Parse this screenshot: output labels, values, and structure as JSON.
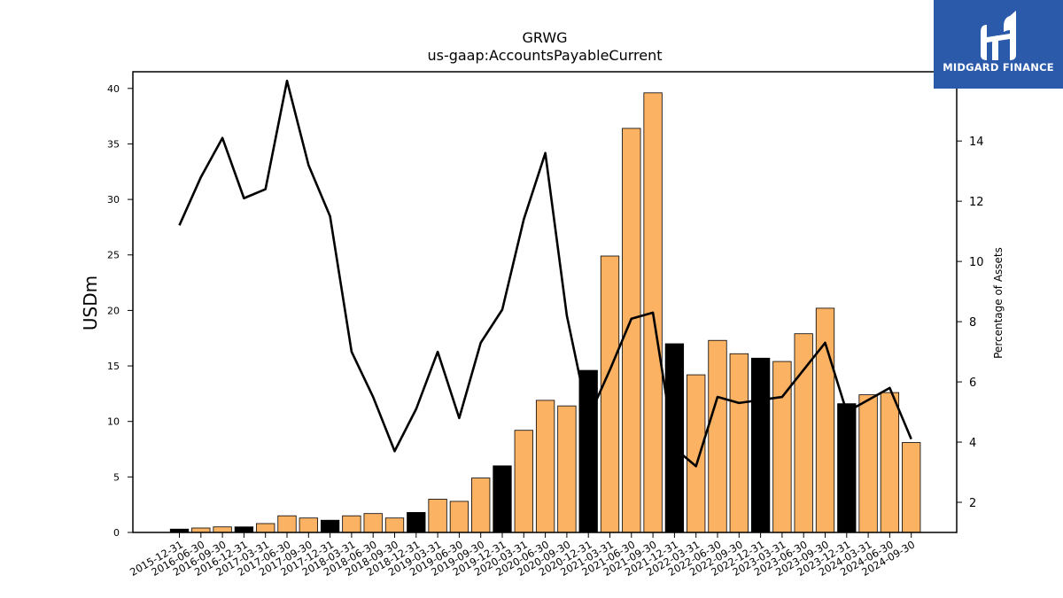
{
  "logo": {
    "text": "MIDGARD FINANCE",
    "color": "#2b5aab"
  },
  "chart_data": {
    "type": "bar",
    "title": "GRWG",
    "subtitle": "us-gaap:AccountsPayableCurrent",
    "ylabel": "USDm",
    "y2label": "Percentage of Assets",
    "ylim": [
      0,
      41.5
    ],
    "y2lim": [
      1.0,
      16.3
    ],
    "yticks": [
      0,
      5,
      10,
      15,
      20,
      25,
      30,
      35,
      40
    ],
    "y2ticks": [
      2,
      4,
      6,
      8,
      10,
      12,
      14
    ],
    "grid": false,
    "colors": {
      "annual_bar": "#000000",
      "quarterly_bar": "#fbb263",
      "line": "#000000"
    },
    "categories": [
      "2015-12-31",
      "2016-06-30",
      "2016-09-30",
      "2016-12-31",
      "2017-03-31",
      "2017-06-30",
      "2017-09-30",
      "2017-12-31",
      "2018-03-31",
      "2018-06-30",
      "2018-09-30",
      "2018-12-31",
      "2019-03-31",
      "2019-06-30",
      "2019-09-30",
      "2019-12-31",
      "2020-03-31",
      "2020-06-30",
      "2020-09-30",
      "2020-12-31",
      "2021-03-31",
      "2021-06-30",
      "2021-09-30",
      "2021-12-31",
      "2022-03-31",
      "2022-06-30",
      "2022-09-30",
      "2022-12-31",
      "2023-03-31",
      "2023-06-30",
      "2023-09-30",
      "2023-12-31",
      "2024-03-31",
      "2024-06-30",
      "2024-09-30"
    ],
    "series": [
      {
        "kind": "bar",
        "axis": "left",
        "values": [
          0.3,
          0.4,
          0.5,
          0.5,
          0.8,
          1.5,
          1.3,
          1.1,
          1.5,
          1.7,
          1.3,
          1.8,
          3.0,
          2.8,
          4.9,
          6.0,
          9.2,
          11.9,
          11.4,
          14.6,
          24.9,
          36.4,
          39.6,
          17.0,
          14.2,
          17.3,
          16.1,
          15.7,
          15.4,
          17.9,
          20.2,
          11.6,
          12.4,
          12.6,
          8.1
        ],
        "annual": [
          true,
          false,
          false,
          true,
          false,
          false,
          false,
          true,
          false,
          false,
          false,
          true,
          false,
          false,
          false,
          true,
          false,
          false,
          false,
          true,
          false,
          false,
          false,
          true,
          false,
          false,
          false,
          true,
          false,
          false,
          false,
          true,
          false,
          false,
          false
        ]
      },
      {
        "kind": "line",
        "axis": "right",
        "values": [
          11.2,
          12.8,
          14.1,
          12.1,
          12.4,
          16.0,
          13.2,
          11.5,
          7.0,
          5.5,
          3.7,
          5.1,
          7.0,
          4.8,
          7.3,
          8.4,
          11.4,
          13.6,
          8.2,
          4.8,
          6.4,
          8.1,
          8.3,
          3.8,
          3.2,
          5.5,
          5.3,
          5.4,
          5.5,
          6.4,
          7.3,
          5.0,
          5.4,
          5.8,
          4.1
        ]
      }
    ]
  }
}
